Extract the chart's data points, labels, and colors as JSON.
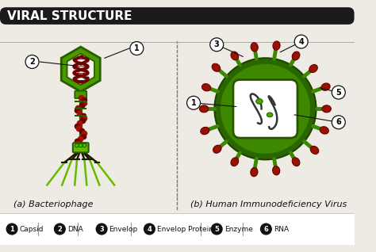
{
  "title": "VIRAL STRUCTURE",
  "title_bg": "#1a1a1a",
  "title_color": "#ffffff",
  "bg_color": "#eeebe5",
  "label_a": "(a) Bacteriophage",
  "label_b": "(b) Human Immunodeficiency Virus",
  "legend": [
    {
      "num": "1",
      "text": "Capsid"
    },
    {
      "num": "2",
      "text": "DNA"
    },
    {
      "num": "3",
      "text": "Envelop"
    },
    {
      "num": "4",
      "text": "Envelop Protein"
    },
    {
      "num": "5",
      "text": "Enzyme"
    },
    {
      "num": "6",
      "text": "RNA"
    }
  ],
  "legend_bg": "#ffffff",
  "legend_text_color": "#111111",
  "green_dark": "#2a5c00",
  "green_light": "#66bb00",
  "green_mid": "#4a9900",
  "green_bright": "#33cc00",
  "red_dark": "#6b0000",
  "red_mid": "#aa1100",
  "red_bright": "#cc2200",
  "divider_color": "#777777",
  "line_color": "#111111"
}
